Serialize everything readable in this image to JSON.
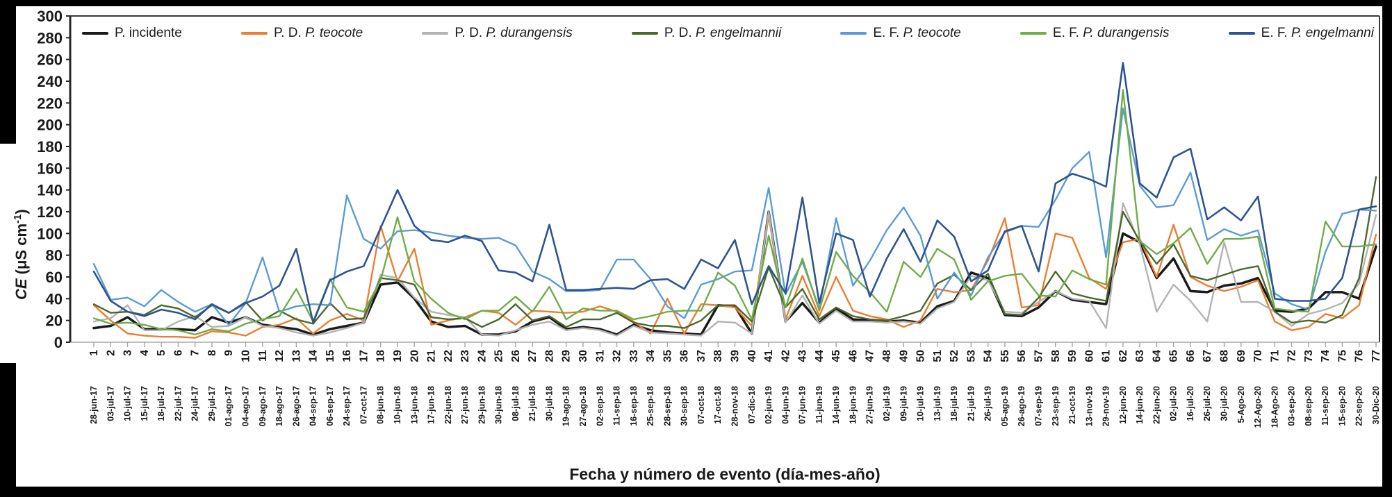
{
  "axes": {
    "y_title": {
      "em": "CE",
      "unit_pre": " (μS cm",
      "unit_sup": "-1",
      "unit_post": ")"
    },
    "x_title": "Fecha y número de evento (día-mes-año)"
  },
  "legend": {
    "items": [
      {
        "prefix": "P. incidente",
        "species": "",
        "color": "#1A1A1A"
      },
      {
        "prefix": "P. D. ",
        "species": "P. teocote",
        "color": "#ED7D31"
      },
      {
        "prefix": "P. D. ",
        "species": "P. durangensis",
        "color": "#B3B3B3"
      },
      {
        "prefix": "P. D. ",
        "species": "P. engelmannii",
        "color": "#4A682C"
      },
      {
        "prefix": "E. F. ",
        "species": "P. teocote",
        "color": "#5B9BD5"
      },
      {
        "prefix": "E. F. ",
        "species": "P. durangensis",
        "color": "#6FAD47"
      },
      {
        "prefix": "E. F. ",
        "species": "P. engelmanni",
        "color": "#2E5490"
      }
    ]
  },
  "chart_data": {
    "type": "line",
    "title": "",
    "xlabel": "Fecha y número de evento (día-mes-año)",
    "ylabel": "CE (μS cm⁻¹)",
    "ylim": [
      0,
      300
    ],
    "y_step": 20,
    "grid": false,
    "legend_position": "top",
    "categories_dates": [
      "28-jun-17",
      "03-jul-17",
      "10-jul-17",
      "15-jul-17",
      "18-jul-17",
      "22-jul-17",
      "24-jul-17",
      "29-jul-17",
      "01-ago-17",
      "04-ago-17",
      "09-ago-17",
      "18-ago-17",
      "26-ago-17",
      "04-sep-17",
      "06-sep-17",
      "24-sep-17",
      "07-oct-17",
      "08-jun-18",
      "10-jun-18",
      "13-jun-18",
      "17-jun-18",
      "22-jun-18",
      "27-jun-18",
      "29-jun-18",
      "30-jun-18",
      "08-jul-18",
      "21-jul-18",
      "30-jul-18",
      "19-ago-18",
      "27-ago-18",
      "02-sep-18",
      "11-sep-18",
      "16-sep-18",
      "25-sep-18",
      "28-sep-18",
      "30-sep-18",
      "07-oct-18",
      "17-oct-18",
      "28-nov-18",
      "07-dic-18",
      "02-jun-19",
      "04-jun-19",
      "07-jun-19",
      "11-jun-19",
      "14-jun-19",
      "18-jun-19",
      "27-jun-19",
      "02-jul-19",
      "09-jul-19",
      "10-jul-19",
      "13-jul-19",
      "18-jul-19",
      "21-jul-19",
      "26-jul-19",
      "05-ago-19",
      "26-ago-19",
      "07-sep-19",
      "23-sep-19",
      "21-oct-19",
      "13-nov-19",
      "29-nov-19",
      "12-jun-20",
      "14-jun-20",
      "22-jun-20",
      "02-jul-20",
      "16-jul-20",
      "26-jul-20",
      "30-jul-20",
      "5-Ago-20",
      "12-Ago-20",
      "18-Ago-20",
      "03-sep-20",
      "08-sep-20",
      "11-sep-20",
      "15-sep-20",
      "22-sep-20",
      "30-Dic-20"
    ],
    "series": [
      {
        "name": "P. incidente",
        "color": "#1A1A1A",
        "stroke_width": 3.5,
        "values": [
          13,
          15,
          23,
          12,
          12,
          12,
          11,
          23,
          18,
          23,
          16,
          14,
          12,
          7,
          12,
          15,
          18,
          53,
          55,
          40,
          19,
          14,
          15,
          7,
          7,
          10,
          19,
          23,
          12,
          14,
          12,
          7,
          16,
          11,
          9,
          8,
          7,
          34,
          33,
          8,
          120,
          19,
          36,
          18,
          31,
          21,
          20,
          19,
          20,
          18,
          33,
          38,
          64,
          59,
          25,
          24,
          32,
          47,
          39,
          37,
          35,
          100,
          92,
          59,
          77,
          47,
          46,
          52,
          54,
          59,
          29,
          28,
          31,
          46,
          46,
          40,
          88
        ]
      },
      {
        "name": "P. D. P. teocote",
        "color": "#ED7D31",
        "stroke_width": 2.4,
        "values": [
          34,
          20,
          8,
          6,
          5,
          5,
          4,
          10,
          9,
          6,
          14,
          16,
          22,
          8,
          20,
          26,
          20,
          107,
          56,
          86,
          16,
          20,
          23,
          29,
          27,
          16,
          29,
          28,
          27,
          28,
          33,
          28,
          19,
          8,
          40,
          8,
          35,
          34,
          32,
          15,
          117,
          21,
          61,
          24,
          60,
          29,
          24,
          21,
          14,
          20,
          49,
          46,
          48,
          75,
          114,
          32,
          34,
          100,
          96,
          59,
          49,
          92,
          95,
          60,
          108,
          60,
          52,
          47,
          51,
          57,
          19,
          11,
          14,
          26,
          22,
          34,
          99
        ]
      },
      {
        "name": "P. D. P. durangensis",
        "color": "#B3B3B3",
        "stroke_width": 2.4,
        "values": [
          19,
          22,
          34,
          11,
          11,
          19,
          24,
          14,
          15,
          23,
          15,
          13,
          9,
          6,
          9,
          13,
          18,
          62,
          59,
          41,
          28,
          25,
          23,
          7,
          6,
          11,
          16,
          19,
          11,
          13,
          11,
          6,
          15,
          9,
          8,
          7,
          6,
          19,
          18,
          8,
          120,
          18,
          43,
          17,
          29,
          19,
          19,
          18,
          19,
          17,
          31,
          37,
          61,
          57,
          28,
          27,
          37,
          47,
          40,
          38,
          13,
          128,
          90,
          28,
          53,
          38,
          19,
          92,
          37,
          37,
          28,
          15,
          26,
          30,
          36,
          54,
          117
        ]
      },
      {
        "name": "P. D. P. engelmannii",
        "color": "#4A682C",
        "stroke_width": 2.4,
        "values": [
          35,
          27,
          28,
          25,
          34,
          31,
          23,
          34,
          27,
          37,
          20,
          29,
          21,
          17,
          36,
          21,
          22,
          59,
          57,
          53,
          23,
          21,
          22,
          14,
          21,
          35,
          20,
          24,
          14,
          21,
          21,
          27,
          18,
          15,
          15,
          13,
          20,
          34,
          34,
          19,
          69,
          32,
          49,
          21,
          32,
          24,
          21,
          20,
          24,
          29,
          54,
          62,
          48,
          63,
          26,
          25,
          41,
          65,
          45,
          41,
          38,
          120,
          93,
          72,
          90,
          61,
          57,
          62,
          67,
          70,
          28,
          18,
          20,
          18,
          25,
          59,
          152
        ]
      },
      {
        "name": "E. F. P. teocote",
        "color": "#5B9BD5",
        "stroke_width": 2.4,
        "values": [
          72,
          39,
          41,
          33,
          48,
          37,
          28,
          35,
          16,
          36,
          78,
          28,
          33,
          35,
          34,
          135,
          95,
          86,
          102,
          103,
          101,
          98,
          96,
          95,
          96,
          89,
          65,
          58,
          47,
          47,
          48,
          76,
          76,
          58,
          33,
          22,
          53,
          58,
          65,
          66,
          142,
          44,
          74,
          31,
          114,
          52,
          75,
          103,
          124,
          98,
          40,
          64,
          43,
          78,
          101,
          107,
          106,
          131,
          160,
          175,
          78,
          215,
          144,
          124,
          126,
          156,
          94,
          104,
          98,
          103,
          45,
          35,
          30,
          83,
          118,
          122,
          121
        ]
      },
      {
        "name": "E. F. P. durangensis",
        "color": "#6FAD47",
        "stroke_width": 2.4,
        "values": [
          22,
          17,
          18,
          16,
          12,
          11,
          7,
          12,
          10,
          17,
          21,
          24,
          49,
          19,
          58,
          32,
          28,
          57,
          115,
          56,
          40,
          27,
          21,
          29,
          29,
          42,
          28,
          51,
          21,
          31,
          29,
          29,
          21,
          24,
          28,
          29,
          29,
          64,
          52,
          21,
          98,
          32,
          77,
          29,
          83,
          61,
          46,
          28,
          74,
          60,
          86,
          76,
          39,
          56,
          61,
          63,
          43,
          42,
          66,
          58,
          53,
          232,
          93,
          81,
          91,
          105,
          72,
          95,
          95,
          97,
          31,
          29,
          28,
          111,
          88,
          88,
          90
        ]
      },
      {
        "name": "E. F. P. engelmanni",
        "color": "#2E5490",
        "stroke_width": 2.6,
        "values": [
          65,
          38,
          28,
          24,
          30,
          27,
          21,
          35,
          27,
          36,
          42,
          52,
          86,
          18,
          57,
          65,
          70,
          105,
          140,
          107,
          94,
          92,
          98,
          93,
          66,
          64,
          56,
          108,
          48,
          48,
          49,
          50,
          49,
          57,
          58,
          49,
          76,
          68,
          94,
          35,
          70,
          45,
          133,
          36,
          100,
          94,
          42,
          77,
          104,
          74,
          112,
          97,
          56,
          66,
          102,
          107,
          65,
          146,
          155,
          150,
          143,
          257,
          146,
          133,
          170,
          178,
          113,
          124,
          112,
          134,
          40,
          38,
          38,
          40,
          59,
          122,
          125
        ]
      }
    ]
  }
}
